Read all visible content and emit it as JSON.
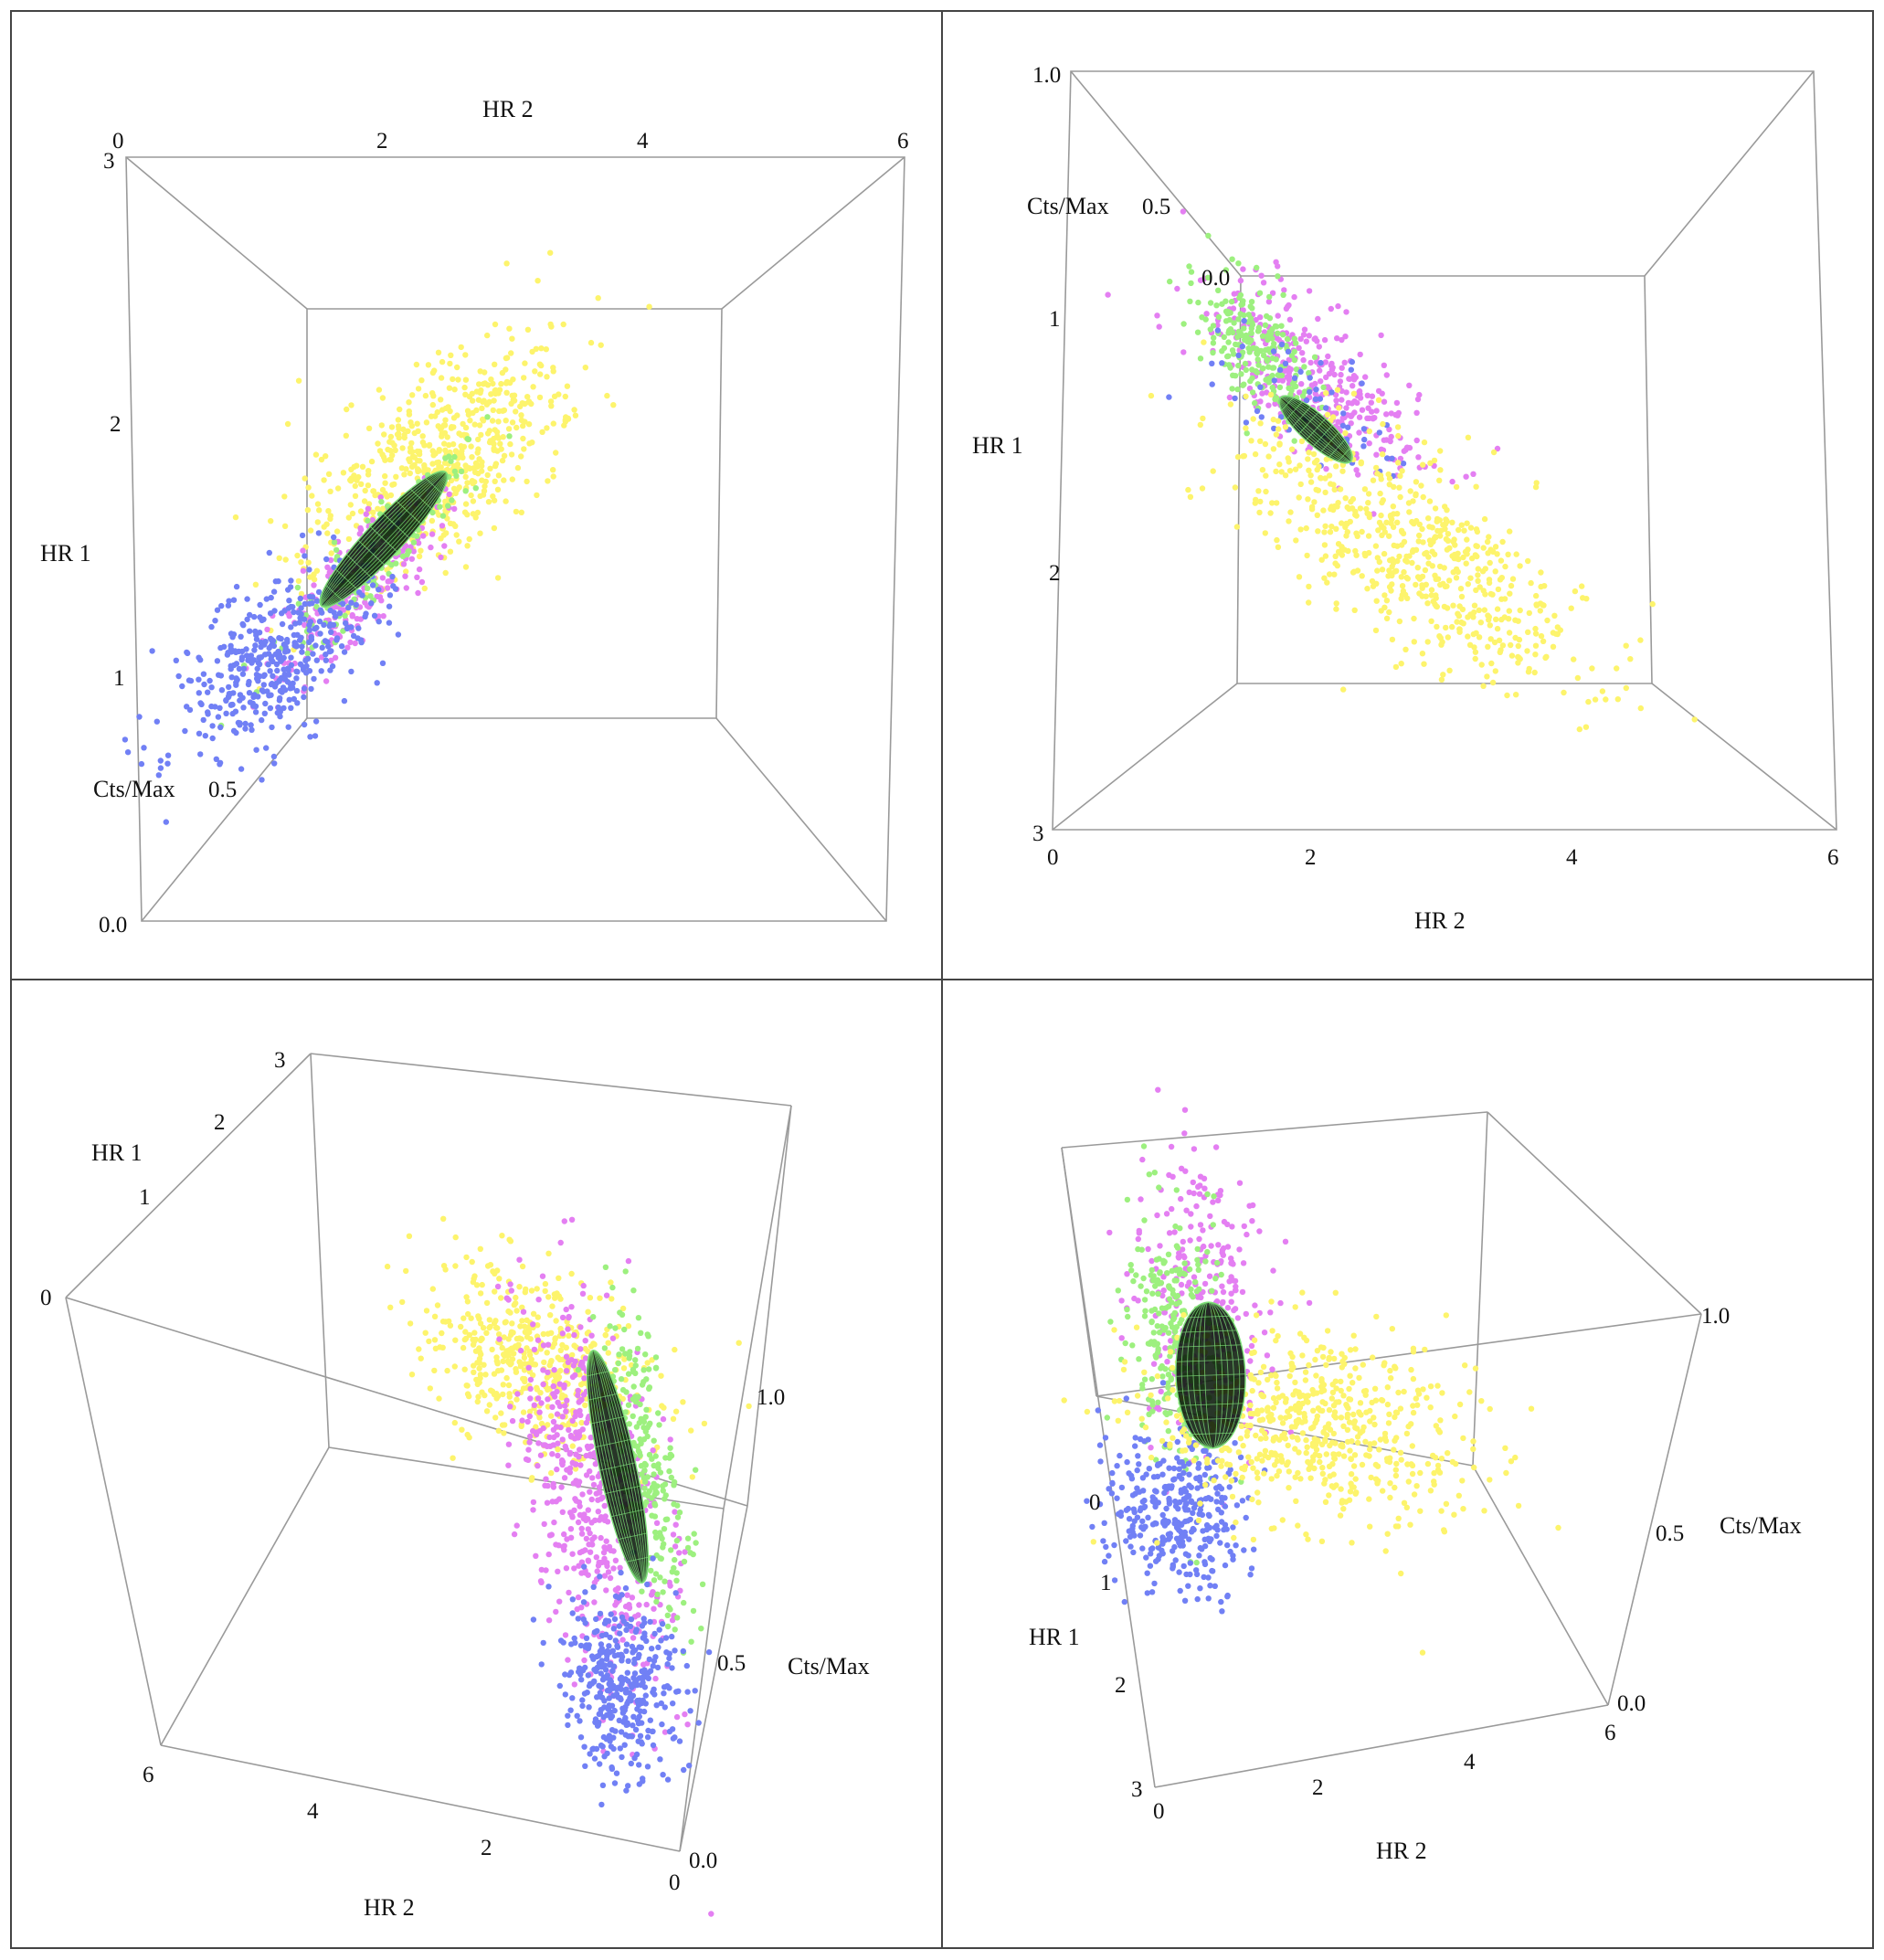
{
  "chart_data": {
    "type": "scatter",
    "figure_layout": "2x2 grid of 3D scatter views",
    "colors": {
      "yellow": "#fdf46c",
      "magenta": "#e47ff2",
      "green": "#9df07f",
      "blue": "#7180f5",
      "fit": "#0a1a0a",
      "fit_mesh": "#7fe07a",
      "box": "#9a9a9a"
    },
    "series": [
      {
        "name": "yellow-cluster",
        "color": "#fdf46c",
        "hr2_center": 3.2,
        "hr1_center": 1.9,
        "cts_center": 0.75
      },
      {
        "name": "magenta-cluster",
        "color": "#e47ff2",
        "hr2_center": 2.0,
        "hr1_center": 1.2,
        "cts_center": 0.6
      },
      {
        "name": "green-cluster",
        "color": "#9df07f",
        "hr2_center": 1.6,
        "hr1_center": 1.0,
        "cts_center": 0.7
      },
      {
        "name": "blue-cluster",
        "color": "#7180f5",
        "hr2_center": 1.2,
        "hr1_center": 0.9,
        "cts_center": 0.35
      }
    ],
    "axes": {
      "hr1": {
        "label": "HR 1",
        "range": [
          0,
          3
        ]
      },
      "hr2": {
        "label": "HR 2",
        "range": [
          0,
          6
        ]
      },
      "cts": {
        "label": "Cts/Max",
        "range": [
          0.0,
          1.0
        ]
      }
    },
    "panels": [
      {
        "name": "top-left",
        "labels": [
          {
            "text": "HR 2",
            "kind": "title"
          },
          {
            "text": "HR 1",
            "kind": "title"
          },
          {
            "text": "Cts/Max",
            "kind": "title"
          },
          {
            "text": "0",
            "kind": "tick"
          },
          {
            "text": "2",
            "kind": "tick"
          },
          {
            "text": "4",
            "kind": "tick"
          },
          {
            "text": "6",
            "kind": "tick"
          },
          {
            "text": "3",
            "kind": "tick"
          },
          {
            "text": "2",
            "kind": "tick"
          },
          {
            "text": "1",
            "kind": "tick"
          },
          {
            "text": "0.5",
            "kind": "tick"
          },
          {
            "text": "0.0",
            "kind": "tick"
          }
        ]
      },
      {
        "name": "top-right",
        "labels": [
          {
            "text": "1.0",
            "kind": "tick"
          },
          {
            "text": "Cts/Max",
            "kind": "title"
          },
          {
            "text": "0.5",
            "kind": "tick"
          },
          {
            "text": "0.0",
            "kind": "tick"
          },
          {
            "text": "1",
            "kind": "tick"
          },
          {
            "text": "HR 1",
            "kind": "title"
          },
          {
            "text": "2",
            "kind": "tick"
          },
          {
            "text": "3",
            "kind": "tick"
          },
          {
            "text": "0",
            "kind": "tick"
          },
          {
            "text": "2",
            "kind": "tick"
          },
          {
            "text": "4",
            "kind": "tick"
          },
          {
            "text": "6",
            "kind": "tick"
          },
          {
            "text": "HR 2",
            "kind": "title"
          }
        ]
      },
      {
        "name": "bottom-left",
        "labels": [
          {
            "text": "3",
            "kind": "tick"
          },
          {
            "text": "HR 1",
            "kind": "title"
          },
          {
            "text": "2",
            "kind": "tick"
          },
          {
            "text": "1",
            "kind": "tick"
          },
          {
            "text": "0",
            "kind": "tick"
          },
          {
            "text": "1.0",
            "kind": "tick"
          },
          {
            "text": "0.5",
            "kind": "tick"
          },
          {
            "text": "Cts/Max",
            "kind": "title"
          },
          {
            "text": "0.0",
            "kind": "tick"
          },
          {
            "text": "6",
            "kind": "tick"
          },
          {
            "text": "4",
            "kind": "tick"
          },
          {
            "text": "2",
            "kind": "tick"
          },
          {
            "text": "0",
            "kind": "tick"
          },
          {
            "text": "HR 2",
            "kind": "title"
          }
        ]
      },
      {
        "name": "bottom-right",
        "labels": [
          {
            "text": "1.0",
            "kind": "tick"
          },
          {
            "text": "0.5",
            "kind": "tick"
          },
          {
            "text": "Cts/Max",
            "kind": "title"
          },
          {
            "text": "0.0",
            "kind": "tick"
          },
          {
            "text": "0",
            "kind": "tick"
          },
          {
            "text": "1",
            "kind": "tick"
          },
          {
            "text": "HR 1",
            "kind": "title"
          },
          {
            "text": "2",
            "kind": "tick"
          },
          {
            "text": "3",
            "kind": "tick"
          },
          {
            "text": "0",
            "kind": "tick"
          },
          {
            "text": "2",
            "kind": "tick"
          },
          {
            "text": "4",
            "kind": "tick"
          },
          {
            "text": "6",
            "kind": "tick"
          },
          {
            "text": "HR 2",
            "kind": "title"
          }
        ]
      }
    ]
  }
}
